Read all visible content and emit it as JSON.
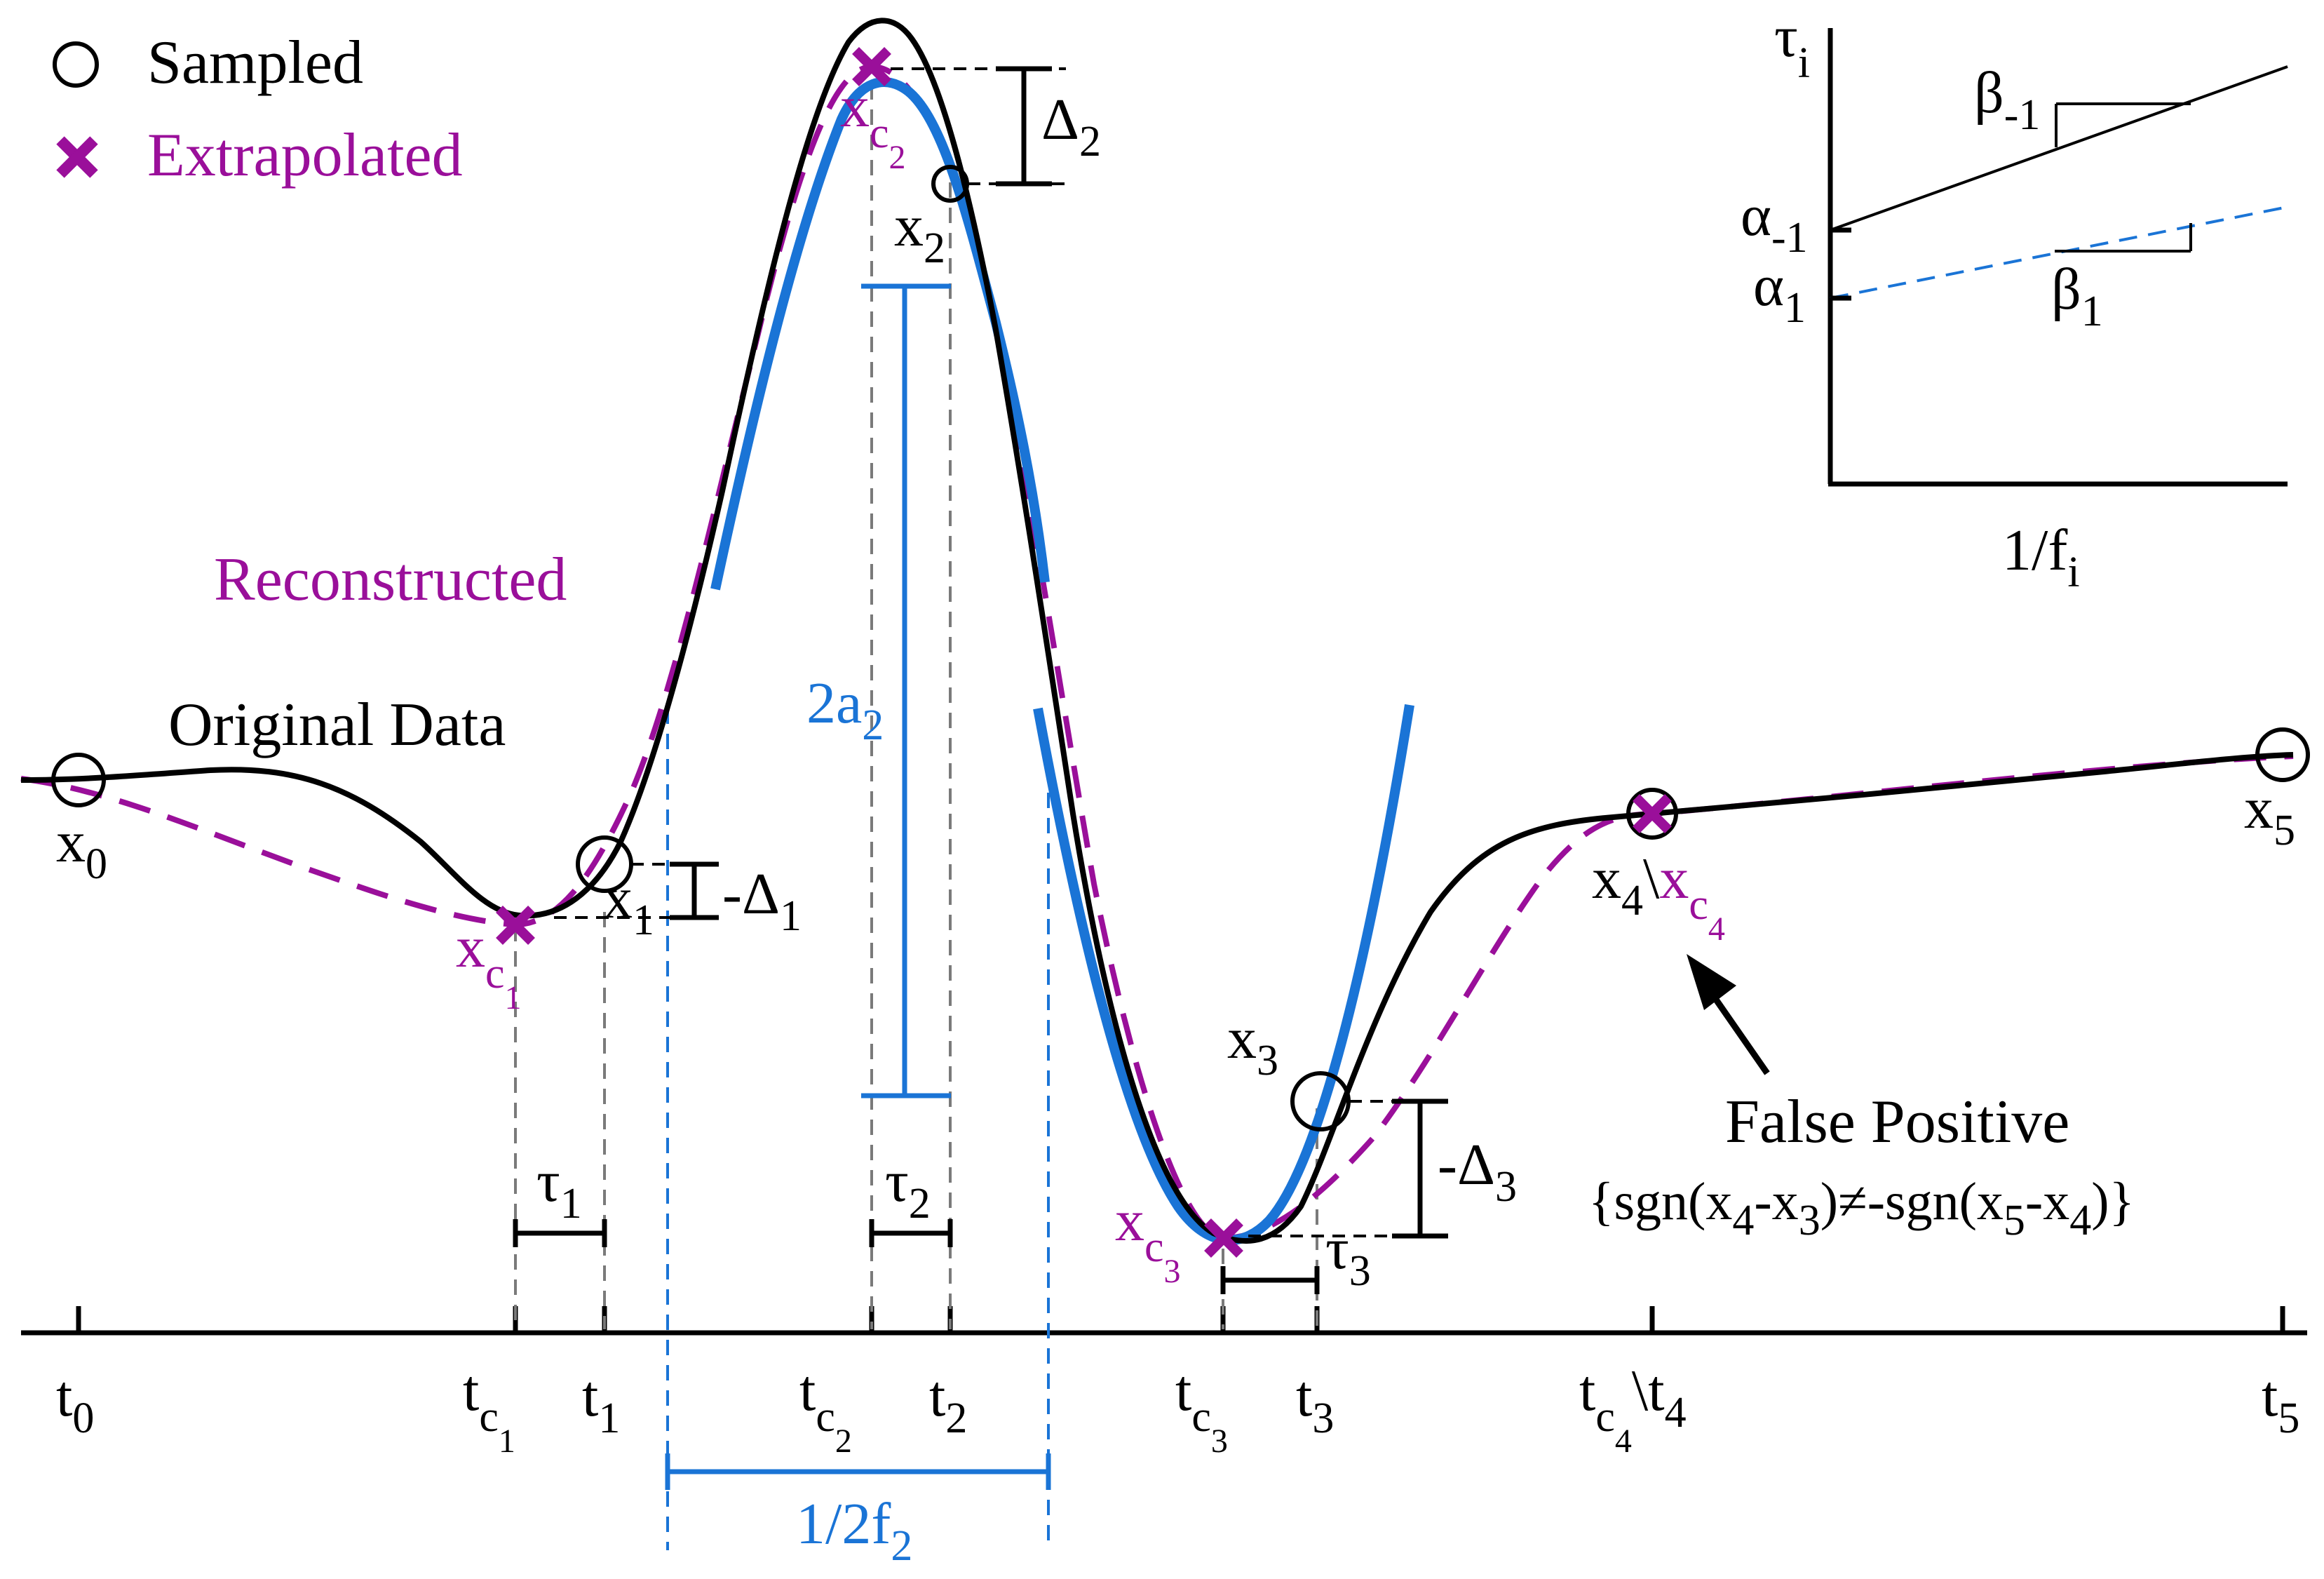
{
  "legend": {
    "sampled_label": "Sampled",
    "extrapolated_label": "Extrapolated"
  },
  "curve_labels": {
    "original": "Original Data",
    "reconstructed": "Reconstructed"
  },
  "axis_ticks": [
    "t",
    "t",
    "t",
    "t",
    "t",
    "t",
    "t",
    "t",
    "t",
    "t",
    "t"
  ],
  "tick_subs": [
    "0",
    "c",
    "1",
    "c",
    "2",
    "c",
    "3",
    "c",
    "4",
    "5"
  ],
  "point_labels": {
    "x0": "x",
    "x0_sub": "0",
    "x1": "x",
    "x1_sub": "1",
    "x2": "x",
    "x2_sub": "2",
    "x3": "x",
    "x3_sub": "3",
    "x5": "x",
    "x5_sub": "5",
    "x4": "x",
    "x4_sub": "4",
    "xc": "x",
    "c": "c",
    "sub1": "1",
    "sub2": "2",
    "sub3": "3",
    "sub4": "4",
    "backslash": "\\"
  },
  "annotations": {
    "delta": "Δ",
    "neg_delta": "-Δ",
    "tau": "τ",
    "two_a": "2a",
    "half_freq": "1/2f",
    "false_positive": "False Positive",
    "fp_condition_a": "{sgn(x",
    "fp_condition_b": "-x",
    "fp_condition_c": ")≠-sgn(x",
    "fp_condition_d": "-x",
    "fp_condition_e": ")}"
  },
  "inset": {
    "y_label": "τ",
    "y_sub": "i",
    "x_label": "1/f",
    "x_sub": "i",
    "alpha": "α",
    "beta": "β",
    "minus1": "-1",
    "one": "1"
  },
  "colors": {
    "original": "#000000",
    "reconstructed": "#9a0f9a",
    "fit": "#1a74d6"
  }
}
